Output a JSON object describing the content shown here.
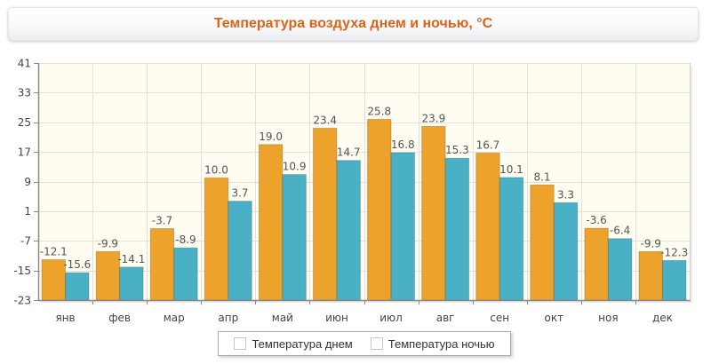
{
  "chart_data": {
    "type": "bar",
    "title": "Температура воздуха днем и ночью, °C",
    "categories": [
      "янв",
      "фев",
      "мар",
      "апр",
      "май",
      "июн",
      "июл",
      "авг",
      "сен",
      "окт",
      "ноя",
      "дек"
    ],
    "series": [
      {
        "name": "Температура днем",
        "color": "#eca22b",
        "values": [
          -12.1,
          -9.9,
          -3.7,
          10.0,
          19.0,
          23.4,
          25.8,
          23.9,
          16.7,
          8.1,
          -3.6,
          -9.9
        ]
      },
      {
        "name": "Температура ночью",
        "color": "#4ab0c5",
        "values": [
          -15.6,
          -14.1,
          -8.9,
          3.7,
          10.9,
          14.7,
          16.8,
          15.3,
          10.1,
          3.3,
          -6.4,
          -12.3
        ]
      }
    ],
    "ylim": [
      -23,
      41
    ],
    "yticks": [
      -23,
      -15,
      -7,
      1,
      9,
      17,
      25,
      33,
      41
    ],
    "grid": true,
    "legend": "bottom-center"
  }
}
